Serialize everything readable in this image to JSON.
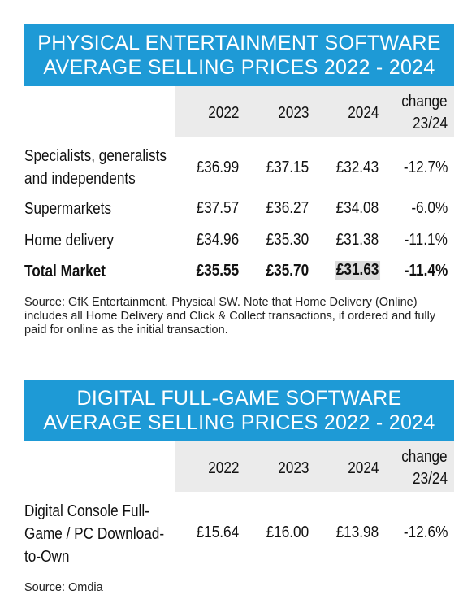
{
  "physical": {
    "title_line1": "PHYSICAL ENTERTAINMENT SOFTWARE",
    "title_line2": "AVERAGE SELLING PRICES 2022 - 2024",
    "headers": [
      "2022",
      "2023",
      "2024",
      "change",
      "23/24"
    ],
    "rows": [
      {
        "label_line1": "Specialists, generalists",
        "label_line2": "and independents",
        "v2022": "£36.99",
        "v2023": "£37.15",
        "v2024": "£32.43",
        "change": "-12.7%"
      },
      {
        "label": "Supermarkets",
        "v2022": "£37.57",
        "v2023": "£36.27",
        "v2024": "£34.08",
        "change": "-6.0%"
      },
      {
        "label": "Home delivery",
        "v2022": "£34.96",
        "v2023": "£35.30",
        "v2024": "£31.38",
        "change": "-11.1%"
      },
      {
        "label": "Total Market",
        "v2022": "£35.55",
        "v2023": "£35.70",
        "v2024": "£31.63",
        "change": "-11.4%"
      }
    ],
    "source": "Source: GfK Entertainment.  Physical SW.  Note that Home Delivery (Online) includes all Home Delivery and Click & Collect transactions, if ordered and fully paid for online as the initial transaction."
  },
  "digital": {
    "title_line1": "DIGITAL FULL-GAME SOFTWARE",
    "title_line2": "AVERAGE SELLING PRICES 2022 - 2024",
    "headers": [
      "2022",
      "2023",
      "2024",
      "change",
      "23/24"
    ],
    "rows": [
      {
        "label_line1": "Digital Console Full-",
        "label_line2": "Game / PC Download-",
        "label_line3": "to-Own",
        "v2022": "£15.64",
        "v2023": "£16.00",
        "v2024": "£13.98",
        "change": "-12.6%"
      }
    ],
    "source": "Source: Omdia"
  },
  "colors": {
    "banner": "#1e9ad6",
    "header_bg": "#ebebeb",
    "highlight": "#dcdcdc"
  }
}
